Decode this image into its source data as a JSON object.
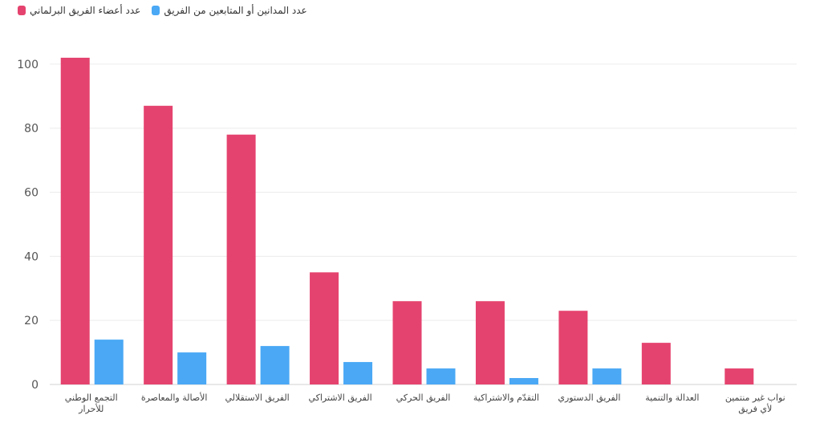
{
  "chart_data": {
    "type": "bar",
    "categories": [
      [
        "التجمع الوطني",
        "للأحرار"
      ],
      [
        "الأصالة والمعاصرة"
      ],
      [
        "الفريق الاستقلالي"
      ],
      [
        "الفريق الاشتراكي"
      ],
      [
        "الفريق الحركي"
      ],
      [
        "التقدّم والاشتراكية"
      ],
      [
        "الفريق الدستوري"
      ],
      [
        "العدالة والتنمية"
      ],
      [
        "نواب غير منتمين",
        "لأي فريق"
      ]
    ],
    "series": [
      {
        "name": "عدد أعضاء الفريق البرلماني",
        "color": "#e5436f",
        "values": [
          102,
          87,
          78,
          35,
          26,
          26,
          23,
          13,
          5
        ]
      },
      {
        "name": "عدد المدانين أو المتابعين من الفريق",
        "color": "#4aa8f5",
        "values": [
          14,
          10,
          12,
          7,
          5,
          2,
          5,
          null,
          null
        ]
      }
    ],
    "yticks": [
      0,
      20,
      40,
      60,
      80,
      100
    ],
    "ylim": [
      0,
      110
    ],
    "grid": true,
    "legend_position": "top-left"
  }
}
